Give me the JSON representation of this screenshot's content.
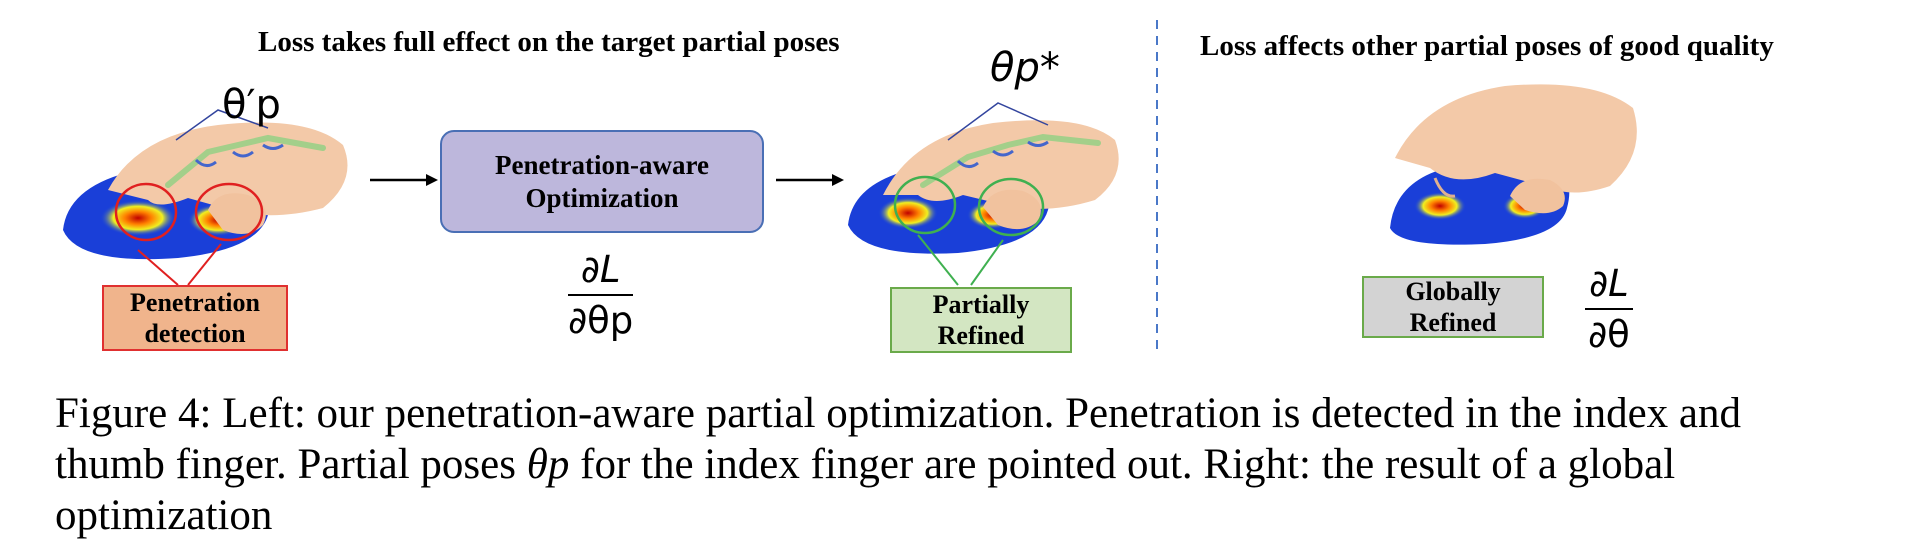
{
  "left_panel": {
    "heading": "Loss takes full effect on the target partial poses",
    "theta_prime_label": "θ′p",
    "theta_star_label": "θp*",
    "optimization_box": "Penetration-aware Optimization",
    "penetration_box": "Penetration detection",
    "partially_refined_box": "Partially Refined",
    "gradient_numerator": "∂L",
    "gradient_denominator": "∂θp",
    "colors": {
      "optimization_fill": "#bdb7dc",
      "optimization_border": "#4a6fb5",
      "penetration_fill": "#f0b48c",
      "penetration_border": "#e03030",
      "refined_fill": "#d3e6c2",
      "refined_border": "#6aaa4a"
    }
  },
  "right_panel": {
    "heading": "Loss affects other partial poses of good quality",
    "globally_refined_box": "Globally Refined",
    "gradient_numerator": "∂L",
    "gradient_denominator": "∂θ",
    "colors": {
      "globally_fill": "#d3d3d3",
      "globally_border": "#6aaa4a",
      "divider": "#4a78c8"
    }
  },
  "caption": {
    "line1": "Figure 4: Left: our penetration-aware partial optimization. Penetration is detected in the index and",
    "line2_pre": "thumb finger. Partial poses ",
    "line2_symbol": "θp",
    "line2_post": " for the index finger are pointed out. Right: the result of a global",
    "line3": "optimization"
  }
}
